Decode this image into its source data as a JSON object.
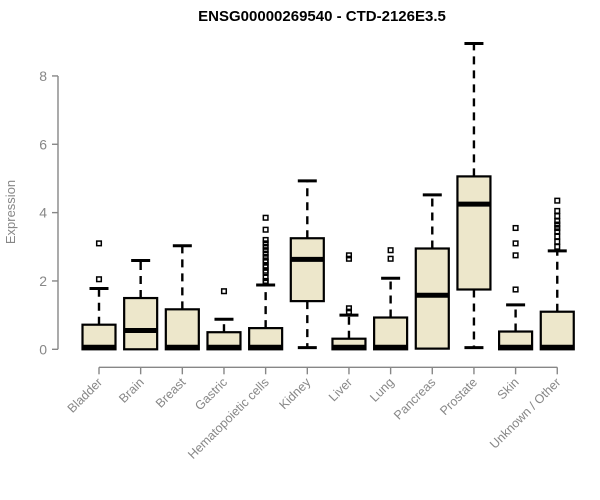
{
  "title": "ENSG00000269540 - CTD-2126E3.5",
  "colors": {
    "box_fill": "#EDE7CB",
    "box_stroke": "#000000",
    "median": "#000000",
    "whisker": "#000000",
    "outlier": "#000000",
    "axis": "#878787",
    "tick_text": "#878787",
    "title_text": "#000000",
    "background": "#FFFFFF"
  },
  "chart_data": {
    "type": "boxplot",
    "title": "ENSG00000269540 - CTD-2126E3.5",
    "xlabel": "",
    "ylabel": "Expression",
    "ylim": [
      0,
      9.2
    ],
    "yticks": [
      0,
      2,
      4,
      6,
      8
    ],
    "grid": false,
    "legend": "none",
    "categories": [
      "Bladder",
      "Brain",
      "Breast",
      "Gastric",
      "Hematopoietic cells",
      "Kidney",
      "Liver",
      "Lung",
      "Pancreas",
      "Prostate",
      "Skin",
      "Unknown / Other"
    ],
    "series": [
      {
        "name": "Bladder",
        "q1": 0,
        "median": 0.06,
        "q3": 0.72,
        "whisker_low": 0,
        "whisker_high": 1.78,
        "outliers": [
          2.05,
          3.1
        ]
      },
      {
        "name": "Brain",
        "q1": 0,
        "median": 0.55,
        "q3": 1.5,
        "whisker_low": 0,
        "whisker_high": 2.6,
        "outliers": []
      },
      {
        "name": "Breast",
        "q1": 0,
        "median": 0.06,
        "q3": 1.17,
        "whisker_low": 0,
        "whisker_high": 3.03,
        "outliers": []
      },
      {
        "name": "Gastric",
        "q1": 0,
        "median": 0.06,
        "q3": 0.5,
        "whisker_low": 0,
        "whisker_high": 0.88,
        "outliers": [
          1.7
        ]
      },
      {
        "name": "Hematopoietic cells",
        "q1": 0,
        "median": 0.06,
        "q3": 0.62,
        "whisker_low": 0,
        "whisker_high": 1.88,
        "outliers": [
          1.95,
          2.0,
          2.1,
          2.25,
          2.3,
          2.4,
          2.45,
          2.55,
          2.6,
          2.7,
          2.8,
          2.9,
          3.0,
          3.1,
          3.2,
          3.5,
          3.85
        ]
      },
      {
        "name": "Kidney",
        "q1": 1.41,
        "median": 2.63,
        "q3": 3.25,
        "whisker_low": 0.05,
        "whisker_high": 4.93,
        "outliers": []
      },
      {
        "name": "Liver",
        "q1": 0,
        "median": 0.06,
        "q3": 0.31,
        "whisker_low": 0,
        "whisker_high": 1.0,
        "outliers": [
          1.1,
          1.2,
          2.65,
          2.75
        ]
      },
      {
        "name": "Lung",
        "q1": 0,
        "median": 0.06,
        "q3": 0.93,
        "whisker_low": 0,
        "whisker_high": 2.08,
        "outliers": [
          2.65,
          2.9
        ]
      },
      {
        "name": "Pancreas",
        "q1": 0.02,
        "median": 1.58,
        "q3": 2.95,
        "whisker_low": 0.02,
        "whisker_high": 4.52,
        "outliers": []
      },
      {
        "name": "Prostate",
        "q1": 1.75,
        "median": 4.25,
        "q3": 5.06,
        "whisker_low": 0.05,
        "whisker_high": 8.95,
        "outliers": []
      },
      {
        "name": "Skin",
        "q1": 0,
        "median": 0.06,
        "q3": 0.52,
        "whisker_low": 0,
        "whisker_high": 1.3,
        "outliers": [
          1.75,
          2.75,
          3.1,
          3.55
        ]
      },
      {
        "name": "Unknown / Other",
        "q1": 0,
        "median": 0.06,
        "q3": 1.1,
        "whisker_low": 0,
        "whisker_high": 2.88,
        "outliers": [
          3.0,
          3.15,
          3.3,
          3.45,
          3.55,
          3.65,
          3.75,
          3.9,
          4.05,
          4.35
        ]
      }
    ]
  }
}
